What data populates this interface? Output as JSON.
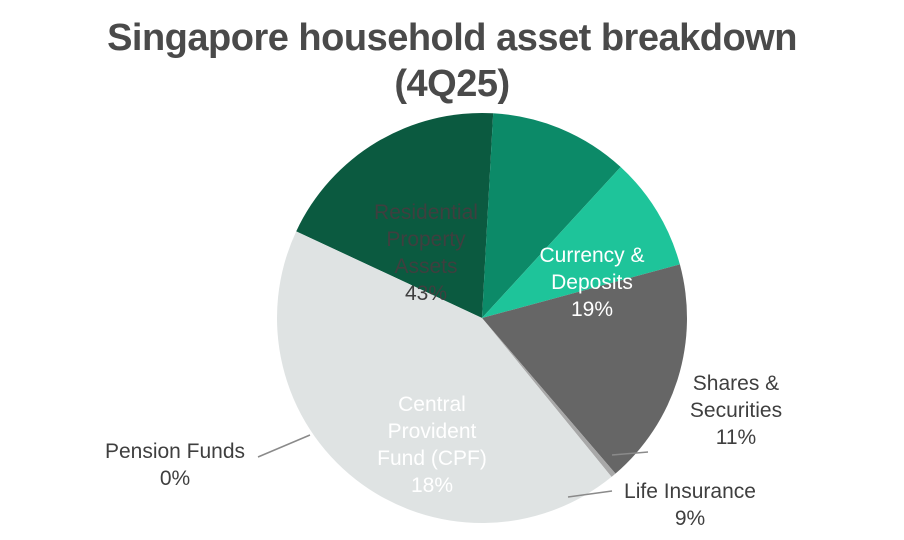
{
  "chart_data": {
    "type": "pie",
    "title_line1": "Singapore household asset breakdown",
    "title_line2": "(4Q25)",
    "slices": [
      {
        "lines": [
          "Currency &",
          "Deposits"
        ],
        "pct_label": "19%",
        "value": 19,
        "color": "#0b5a40",
        "text_color": "#ffffff"
      },
      {
        "lines": [
          "Shares &",
          "Securities"
        ],
        "pct_label": "11%",
        "value": 11,
        "color": "#0c8a68",
        "text_color": "#3f3f3f"
      },
      {
        "lines": [
          "Life Insurance"
        ],
        "pct_label": "9%",
        "value": 9,
        "color": "#1ec49a",
        "text_color": "#3f3f3f"
      },
      {
        "lines": [
          "Central",
          "Provident",
          "Fund (CPF)"
        ],
        "pct_label": "18%",
        "value": 18,
        "color": "#666666",
        "text_color": "#ffffff"
      },
      {
        "lines": [
          "Pension Funds"
        ],
        "pct_label": "0%",
        "value": 0.4,
        "color": "#a8a8a8",
        "text_color": "#3f3f3f"
      },
      {
        "lines": [
          "Residential",
          "Property",
          "Assets"
        ],
        "pct_label": "43%",
        "value": 43,
        "color": "#dfe3e3",
        "text_color": "#3f3f3f"
      }
    ]
  }
}
